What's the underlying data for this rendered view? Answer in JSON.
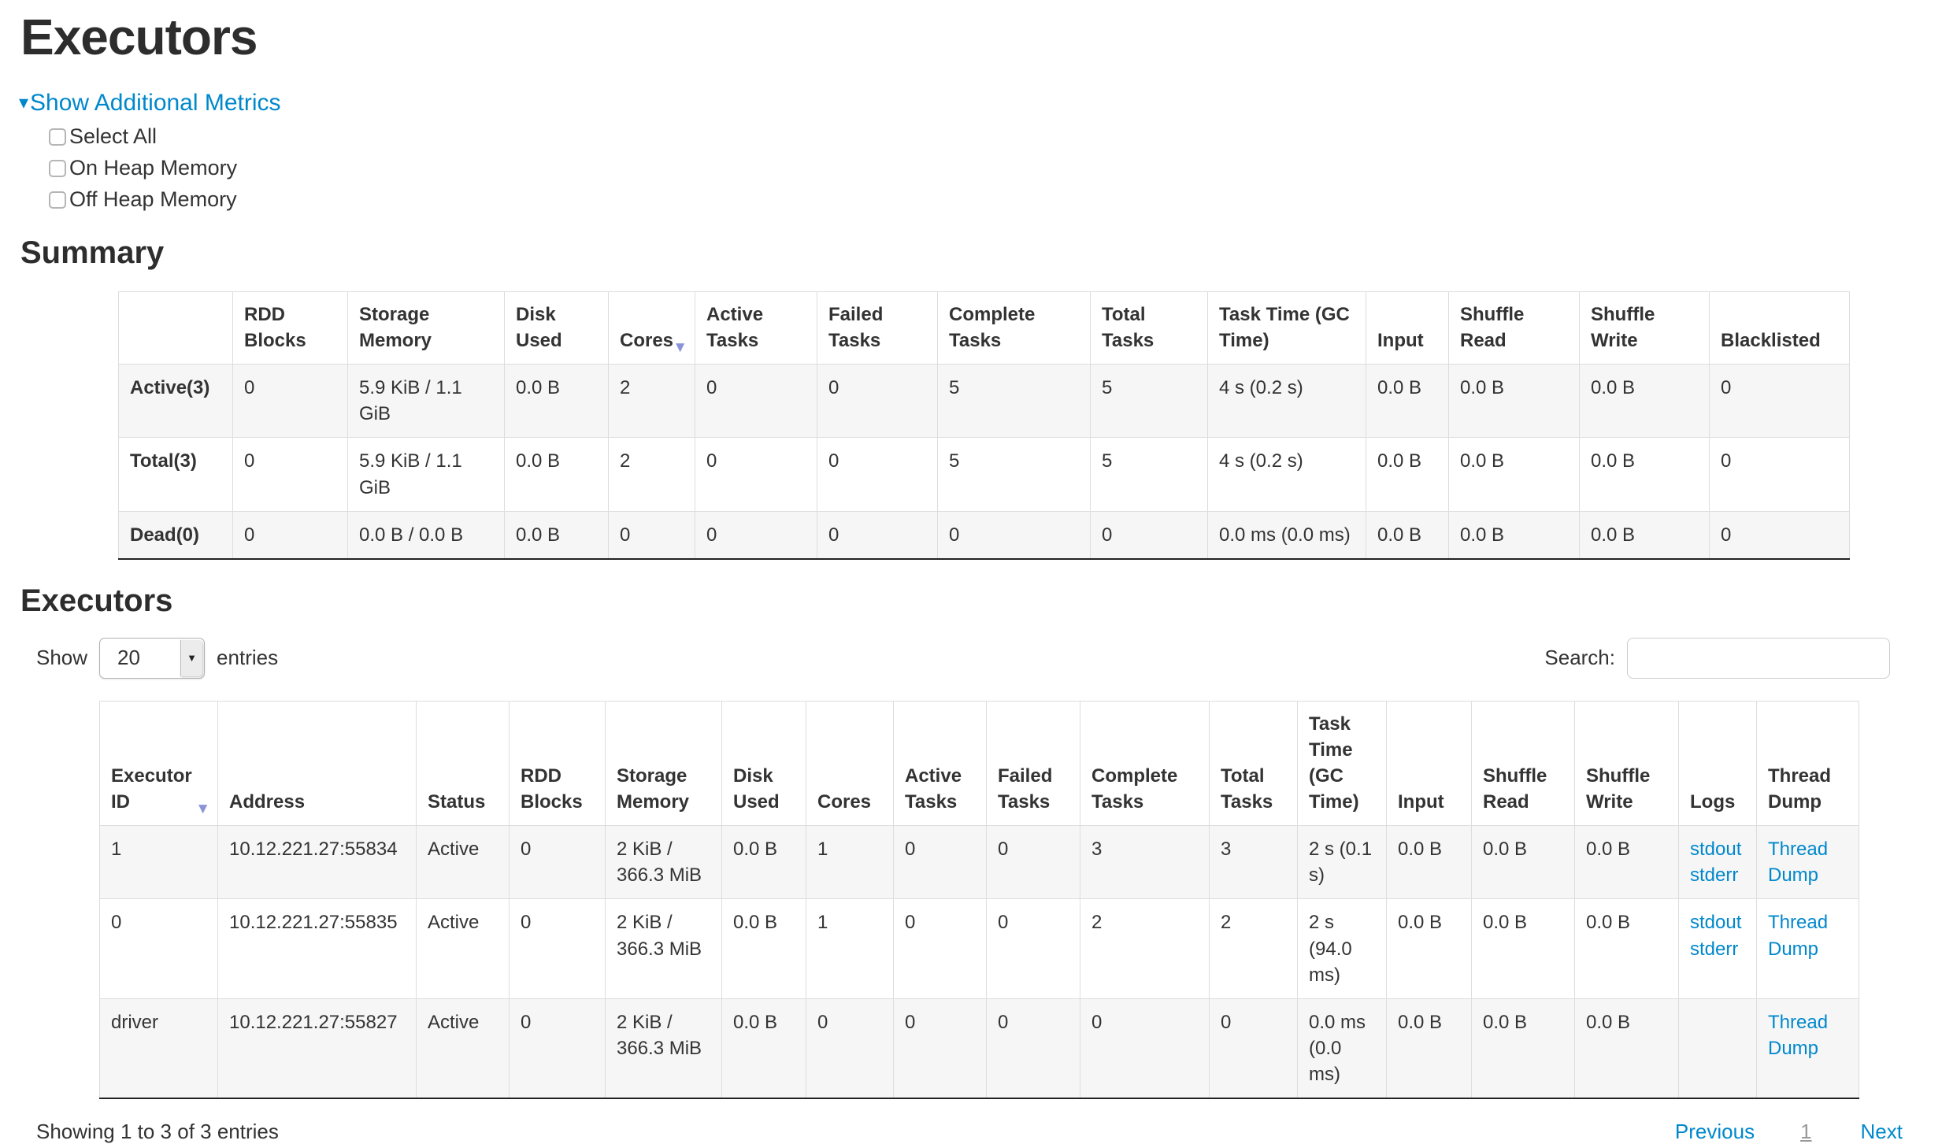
{
  "page": {
    "title": "Executors"
  },
  "icons": {
    "collapse_caret": "▾",
    "sort_desc": "▼",
    "select_dropdown": "▼"
  },
  "colors": {
    "link": "#0088cc",
    "sort_arrow": "#8b93da",
    "row_stripe": "#f6f6f6",
    "table_border": "#dddddd",
    "table_bottom_border": "#222222",
    "text": "#333333"
  },
  "additional_metrics": {
    "toggle_label": "Show Additional Metrics",
    "options": [
      {
        "label": "Select All",
        "checked": false
      },
      {
        "label": "On Heap Memory",
        "checked": false
      },
      {
        "label": "Off Heap Memory",
        "checked": false
      }
    ]
  },
  "summary": {
    "heading": "Summary",
    "columns": [
      "",
      "RDD Blocks",
      "Storage Memory",
      "Disk Used",
      "Cores",
      "Active Tasks",
      "Failed Tasks",
      "Complete Tasks",
      "Total Tasks",
      "Task Time (GC Time)",
      "Input",
      "Shuffle Read",
      "Shuffle Write",
      "Blacklisted"
    ],
    "sorted_column": "Cores",
    "sort_direction": "desc",
    "rows": [
      {
        "label": "Active(3)",
        "cells": [
          "0",
          "5.9 KiB / 1.1 GiB",
          "0.0 B",
          "2",
          "0",
          "0",
          "5",
          "5",
          "4 s (0.2 s)",
          "0.0 B",
          "0.0 B",
          "0.0 B",
          "0"
        ]
      },
      {
        "label": "Total(3)",
        "cells": [
          "0",
          "5.9 KiB / 1.1 GiB",
          "0.0 B",
          "2",
          "0",
          "0",
          "5",
          "5",
          "4 s (0.2 s)",
          "0.0 B",
          "0.0 B",
          "0.0 B",
          "0"
        ]
      },
      {
        "label": "Dead(0)",
        "cells": [
          "0",
          "0.0 B / 0.0 B",
          "0.0 B",
          "0",
          "0",
          "0",
          "0",
          "0",
          "0.0 ms (0.0 ms)",
          "0.0 B",
          "0.0 B",
          "0.0 B",
          "0"
        ]
      }
    ]
  },
  "executors": {
    "heading": "Executors",
    "length_control": {
      "before": "Show",
      "value": "20",
      "after": "entries"
    },
    "search": {
      "label": "Search:",
      "value": ""
    },
    "columns": [
      "Executor ID",
      "Address",
      "Status",
      "RDD Blocks",
      "Storage Memory",
      "Disk Used",
      "Cores",
      "Active Tasks",
      "Failed Tasks",
      "Complete Tasks",
      "Total Tasks",
      "Task Time (GC Time)",
      "Input",
      "Shuffle Read",
      "Shuffle Write",
      "Logs",
      "Thread Dump"
    ],
    "sorted_column": "Executor ID",
    "sort_direction": "desc",
    "rows": [
      {
        "cells": [
          "1",
          "10.12.221.27:55834",
          "Active",
          "0",
          "2 KiB / 366.3 MiB",
          "0.0 B",
          "1",
          "0",
          "0",
          "3",
          "3",
          "2 s (0.1 s)",
          "0.0 B",
          "0.0 B",
          "0.0 B",
          {
            "links": [
              "stdout",
              "stderr"
            ]
          },
          {
            "links": [
              "Thread Dump"
            ]
          }
        ]
      },
      {
        "cells": [
          "0",
          "10.12.221.27:55835",
          "Active",
          "0",
          "2 KiB / 366.3 MiB",
          "0.0 B",
          "1",
          "0",
          "0",
          "2",
          "2",
          "2 s (94.0 ms)",
          "0.0 B",
          "0.0 B",
          "0.0 B",
          {
            "links": [
              "stdout",
              "stderr"
            ]
          },
          {
            "links": [
              "Thread Dump"
            ]
          }
        ]
      },
      {
        "cells": [
          "driver",
          "10.12.221.27:55827",
          "Active",
          "0",
          "2 KiB / 366.3 MiB",
          "0.0 B",
          "0",
          "0",
          "0",
          "0",
          "0",
          "0.0 ms (0.0 ms)",
          "0.0 B",
          "0.0 B",
          "0.0 B",
          {
            "links": []
          },
          {
            "links": [
              "Thread Dump"
            ]
          }
        ]
      }
    ],
    "info": "Showing 1 to 3 of 3 entries",
    "pagination": {
      "previous": "Previous",
      "pages": [
        "1"
      ],
      "current": "1",
      "next": "Next"
    }
  }
}
